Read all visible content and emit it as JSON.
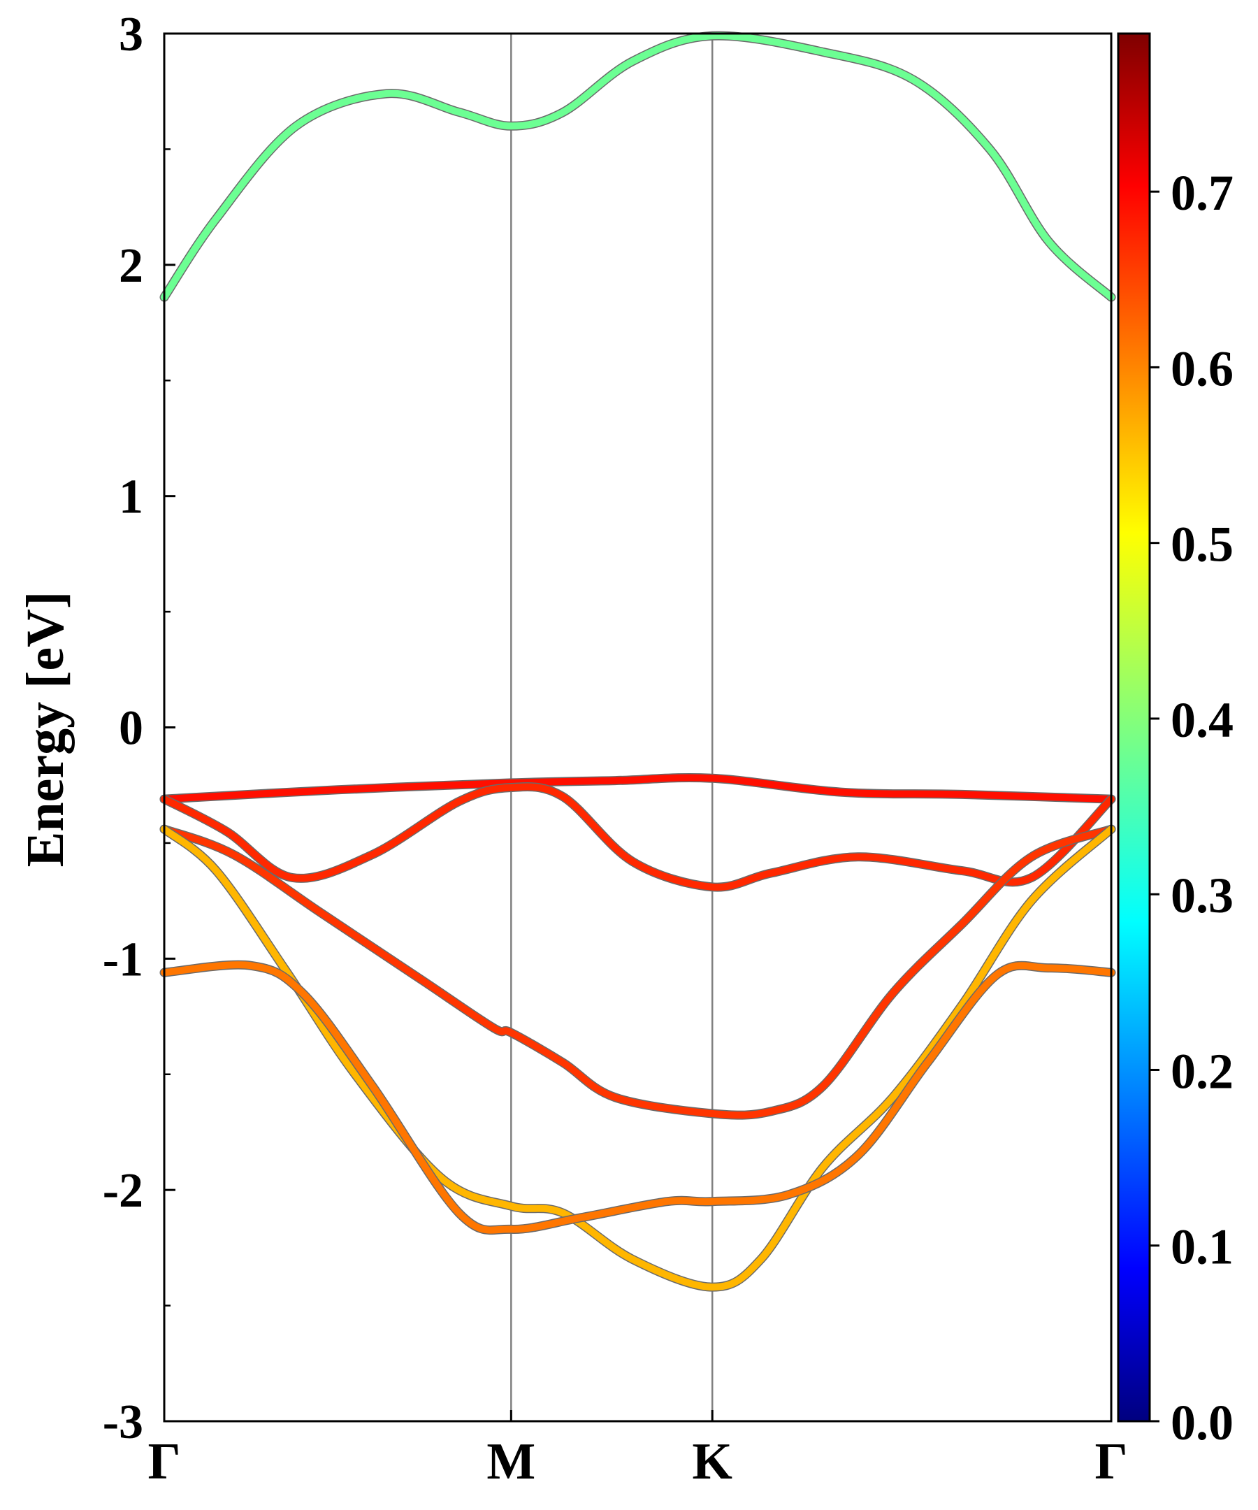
{
  "chart_data": {
    "type": "line",
    "title": "",
    "ylabel": "Energy [eV]",
    "xlabel": "",
    "ylim": [
      -3,
      3
    ],
    "y_ticks": [
      "-3",
      "-2",
      "-1",
      "0",
      "1",
      "2",
      "3"
    ],
    "k_points": [
      {
        "label": "Γ",
        "x": 0.0
      },
      {
        "label": "M",
        "x": 1.0
      },
      {
        "label": "K",
        "x": 1.58
      },
      {
        "label": "Γ",
        "x": 2.73
      }
    ],
    "xlim": [
      0,
      2.73
    ],
    "grid": false,
    "colorbar": {
      "colormap": "jet",
      "range": [
        0,
        0.79
      ],
      "ticks": [
        "0.0",
        "0.1",
        "0.2",
        "0.3",
        "0.4",
        "0.5",
        "0.6",
        "0.7"
      ]
    },
    "series": [
      {
        "color_value": 0.38,
        "points": [
          [
            0,
            1.86
          ],
          [
            0.15,
            2.2
          ],
          [
            0.38,
            2.6
          ],
          [
            0.64,
            2.74
          ],
          [
            0.85,
            2.66
          ],
          [
            1.0,
            2.6
          ],
          [
            1.15,
            2.66
          ],
          [
            1.35,
            2.88
          ],
          [
            1.58,
            2.99
          ],
          [
            1.9,
            2.92
          ],
          [
            2.16,
            2.8
          ],
          [
            2.38,
            2.5
          ],
          [
            2.55,
            2.1
          ],
          [
            2.73,
            1.86
          ]
        ]
      },
      {
        "color_value": 0.68,
        "points": [
          [
            0,
            -0.31
          ],
          [
            0.5,
            -0.27
          ],
          [
            1.0,
            -0.24
          ],
          [
            1.3,
            -0.23
          ],
          [
            1.58,
            -0.22
          ],
          [
            1.95,
            -0.28
          ],
          [
            2.3,
            -0.29
          ],
          [
            2.73,
            -0.31
          ]
        ]
      },
      {
        "color_value": 0.66,
        "points": [
          [
            0,
            -0.31
          ],
          [
            0.18,
            -0.45
          ],
          [
            0.37,
            -0.65
          ],
          [
            0.6,
            -0.55
          ],
          [
            0.85,
            -0.32
          ],
          [
            1.0,
            -0.26
          ],
          [
            1.15,
            -0.3
          ],
          [
            1.35,
            -0.58
          ],
          [
            1.58,
            -0.69
          ],
          [
            1.75,
            -0.63
          ],
          [
            2.0,
            -0.56
          ],
          [
            2.3,
            -0.62
          ],
          [
            2.5,
            -0.65
          ],
          [
            2.73,
            -0.31
          ]
        ]
      },
      {
        "color_value": 0.65,
        "points": [
          [
            0,
            -0.44
          ],
          [
            0.2,
            -0.55
          ],
          [
            0.45,
            -0.8
          ],
          [
            0.75,
            -1.1
          ],
          [
            0.95,
            -1.3
          ],
          [
            1.0,
            -1.32
          ],
          [
            1.15,
            -1.45
          ],
          [
            1.3,
            -1.6
          ],
          [
            1.58,
            -1.67
          ],
          [
            1.75,
            -1.66
          ],
          [
            1.9,
            -1.55
          ],
          [
            2.1,
            -1.15
          ],
          [
            2.3,
            -0.85
          ],
          [
            2.5,
            -0.56
          ],
          [
            2.73,
            -0.44
          ]
        ]
      },
      {
        "color_value": 0.55,
        "points": [
          [
            0,
            -0.44
          ],
          [
            0.15,
            -0.62
          ],
          [
            0.35,
            -1.05
          ],
          [
            0.55,
            -1.5
          ],
          [
            0.8,
            -1.95
          ],
          [
            1.0,
            -2.07
          ],
          [
            1.15,
            -2.1
          ],
          [
            1.35,
            -2.3
          ],
          [
            1.58,
            -2.42
          ],
          [
            1.72,
            -2.3
          ],
          [
            1.9,
            -1.9
          ],
          [
            2.1,
            -1.6
          ],
          [
            2.3,
            -1.2
          ],
          [
            2.5,
            -0.75
          ],
          [
            2.73,
            -0.44
          ]
        ]
      },
      {
        "color_value": 0.6,
        "points": [
          [
            0,
            -1.06
          ],
          [
            0.25,
            -1.03
          ],
          [
            0.4,
            -1.15
          ],
          [
            0.6,
            -1.55
          ],
          [
            0.85,
            -2.1
          ],
          [
            1.0,
            -2.17
          ],
          [
            1.2,
            -2.12
          ],
          [
            1.45,
            -2.05
          ],
          [
            1.58,
            -2.05
          ],
          [
            1.8,
            -2.02
          ],
          [
            2.0,
            -1.85
          ],
          [
            2.2,
            -1.45
          ],
          [
            2.4,
            -1.07
          ],
          [
            2.55,
            -1.04
          ],
          [
            2.73,
            -1.06
          ]
        ]
      }
    ]
  }
}
